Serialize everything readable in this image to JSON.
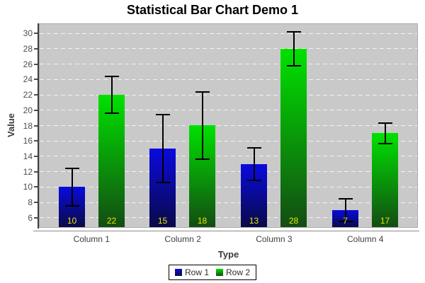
{
  "title": "Statistical Bar Chart Demo 1",
  "chart_data": {
    "type": "bar",
    "title": "Statistical Bar Chart Demo 1",
    "xlabel": "Type",
    "ylabel": "Value",
    "categories": [
      "Column 1",
      "Column 2",
      "Column 3",
      "Column 4"
    ],
    "series": [
      {
        "name": "Row 1",
        "values": [
          10,
          15,
          13,
          7
        ],
        "errors": [
          2.4,
          4.4,
          2.1,
          1.5
        ],
        "bar_top_color": "#0a0ae0",
        "bar_bottom_color": "#0a0a48"
      },
      {
        "name": "Row 2",
        "values": [
          22,
          18,
          28,
          17
        ],
        "errors": [
          2.4,
          4.4,
          2.2,
          1.3
        ],
        "bar_top_color": "#00e200",
        "bar_bottom_color": "#134c13"
      }
    ],
    "value_labels": [
      [
        "10",
        "15",
        "13",
        "7"
      ],
      [
        "22",
        "18",
        "28",
        "17"
      ]
    ],
    "y_ticks": [
      6,
      8,
      10,
      12,
      14,
      16,
      18,
      20,
      22,
      24,
      26,
      28,
      30
    ],
    "ylim": [
      4.8,
      31.2
    ],
    "grid": "horizontal-dashed",
    "legend_position": "bottom",
    "colors": {
      "plot_background": "#c9c9c9",
      "gridline": "#f2f2f2",
      "error_bar": "#000000",
      "bar_value_label": "#e8e800",
      "chart_background": "#ffffff"
    }
  }
}
